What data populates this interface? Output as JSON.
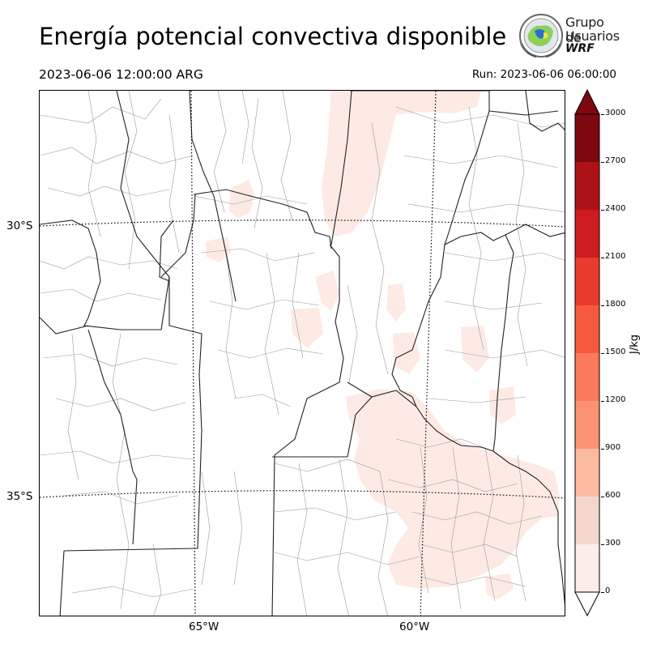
{
  "header": {
    "title": "Energía potencial convectiva disponible",
    "valid_time": "2023-06-06 12:00:00 ARG",
    "run_time": "Run: 2023-06-06 06:00:00"
  },
  "logo": {
    "line1": "Grupo de",
    "line2": "Usuarios",
    "line3": "WRF"
  },
  "map": {
    "lat_labels": [
      "30°S",
      "35°S"
    ],
    "lon_labels": [
      "65°W",
      "60°W"
    ],
    "field": "CAPE",
    "shading_color": "#fde8e2"
  },
  "colorbar": {
    "unit": "J/kg",
    "ticks": [
      "0",
      "300",
      "600",
      "900",
      "1200",
      "1500",
      "1800",
      "2100",
      "2400",
      "2700",
      "3000"
    ],
    "colors": [
      "#fdede8",
      "#f5d6cd",
      "#fcbba1",
      "#fc9272",
      "#fb7a5a",
      "#f85a40",
      "#ea3a2c",
      "#cd1b1f",
      "#ad1218",
      "#7d0810"
    ],
    "over_color": "#7d0810",
    "under_color": "#ffffff"
  }
}
